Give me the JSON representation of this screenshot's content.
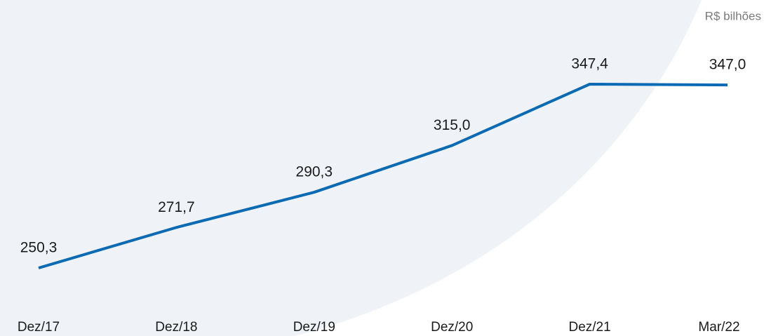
{
  "chart_data": {
    "type": "line",
    "unit_label": "R$ bilhões",
    "categories": [
      "Dez/17",
      "Dez/18",
      "Dez/19",
      "Dez/20",
      "Dez/21",
      "Mar/22"
    ],
    "values": [
      250.3,
      271.7,
      290.3,
      315.0,
      347.4,
      347.0
    ],
    "value_labels": [
      "250,3",
      "271,7",
      "290,3",
      "315,0",
      "347,4",
      "347,0"
    ],
    "color": "#0a6ab3"
  }
}
